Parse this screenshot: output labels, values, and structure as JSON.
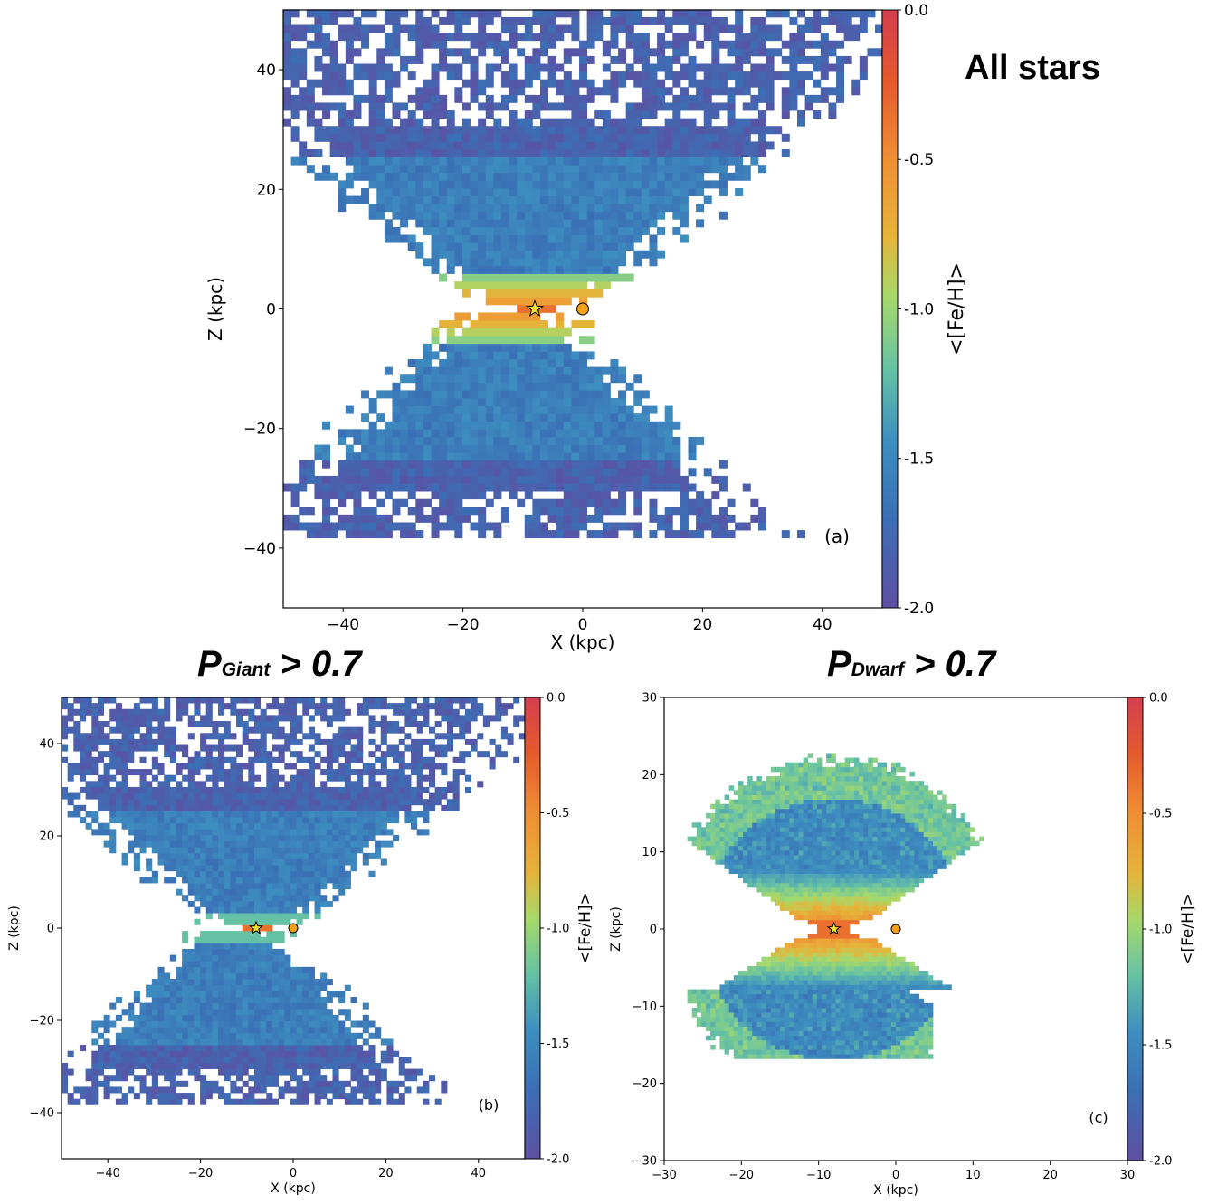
{
  "headline": "All stars",
  "panel_titles": {
    "b": {
      "main": "P",
      "sub": "Giant",
      "rest": " > 0.7"
    },
    "c": {
      "main": "P",
      "sub": "Dwarf",
      "rest": " > 0.7"
    }
  },
  "colorscale": [
    "#5e4fa2",
    "#3b6fb5",
    "#3d8fc0",
    "#66c2a5",
    "#a6d96a",
    "#e6b43a",
    "#f08f34",
    "#e55a2d",
    "#d53e4f"
  ],
  "chart_data": [
    {
      "type": "heatmap",
      "panel": "(a)",
      "xlabel": "X (kpc)",
      "ylabel": "Z (kpc)",
      "xlim": [
        -50,
        50
      ],
      "ylim": [
        -50,
        50
      ],
      "xticks": [
        -40,
        -20,
        0,
        20,
        40
      ],
      "yticks": [
        -40,
        -20,
        0,
        20,
        40
      ],
      "xtick_labels": [
        "−40",
        "−20",
        "0",
        "20",
        "40"
      ],
      "ytick_labels": [
        "−40",
        "−20",
        "0",
        "20",
        "40"
      ],
      "colorbar": {
        "label": "<[Fe/H]>",
        "range": [
          -2.0,
          0.0
        ],
        "ticks": [
          0.0,
          -0.5,
          -1.0,
          -1.5,
          -2.0
        ],
        "tick_labels": [
          "0.0",
          "-0.5",
          "-1.0",
          "-1.5",
          "-2.0"
        ]
      },
      "markers": [
        {
          "name": "Sun",
          "symbol": "star",
          "x": -8,
          "y": 0,
          "color": "#f2e130"
        },
        {
          "name": "Galactic center",
          "symbol": "circle",
          "x": 0,
          "y": 0,
          "color": "#f5a11a"
        }
      ],
      "approx_distribution": "bow-tie shaped coverage; metal-rich ([Fe/H] ~ -0.3) near disk plane |Z|<4 kpc, metal-poor halo ([Fe/H] ~ -1.5 to -2.0) at high |Z|"
    },
    {
      "type": "heatmap",
      "panel": "(b)",
      "xlabel": "X (kpc)",
      "ylabel": "Z (kpc)",
      "xlim": [
        -50,
        50
      ],
      "ylim": [
        -50,
        50
      ],
      "xticks": [
        -40,
        -20,
        0,
        20,
        40
      ],
      "yticks": [
        -40,
        -20,
        0,
        20,
        40
      ],
      "xtick_labels": [
        "−40",
        "−20",
        "0",
        "20",
        "40"
      ],
      "ytick_labels": [
        "−40",
        "−20",
        "0",
        "20",
        "40"
      ],
      "colorbar": {
        "label": "<[Fe/H]>",
        "range": [
          -2.0,
          0.0
        ],
        "ticks": [
          0.0,
          -0.5,
          -1.0,
          -1.5,
          -2.0
        ],
        "tick_labels": [
          "0.0",
          "-0.5",
          "-1.0",
          "-1.5",
          "-2.0"
        ]
      },
      "markers": [
        {
          "name": "Sun",
          "symbol": "star",
          "x": -8,
          "y": 0,
          "color": "#f2e130"
        },
        {
          "name": "Galactic center",
          "symbol": "circle",
          "x": 0,
          "y": 0,
          "color": "#f5a11a"
        }
      ]
    },
    {
      "type": "heatmap",
      "panel": "(c)",
      "xlabel": "X (kpc)",
      "ylabel": "Z (kpc)",
      "xlim": [
        -30,
        30
      ],
      "ylim": [
        -30,
        30
      ],
      "xticks": [
        -30,
        -20,
        -10,
        0,
        10,
        20,
        30
      ],
      "yticks": [
        -30,
        -20,
        -10,
        0,
        10,
        20,
        30
      ],
      "xtick_labels": [
        "−30",
        "−20",
        "−10",
        "0",
        "10",
        "20",
        "30"
      ],
      "ytick_labels": [
        "−30",
        "−20",
        "−10",
        "0",
        "10",
        "20",
        "30"
      ],
      "colorbar": {
        "label": "<[Fe/H]>",
        "range": [
          -2.0,
          0.0
        ],
        "ticks": [
          0.0,
          -0.5,
          -1.0,
          -1.5,
          -2.0
        ],
        "tick_labels": [
          "0.0",
          "-0.5",
          "-1.0",
          "-1.5",
          "-2.0"
        ]
      },
      "markers": [
        {
          "name": "Sun",
          "symbol": "star",
          "x": -8,
          "y": 0,
          "color": "#f2e130"
        },
        {
          "name": "Galactic center",
          "symbol": "circle",
          "x": 0,
          "y": 0,
          "color": "#f5a11a"
        }
      ]
    }
  ]
}
